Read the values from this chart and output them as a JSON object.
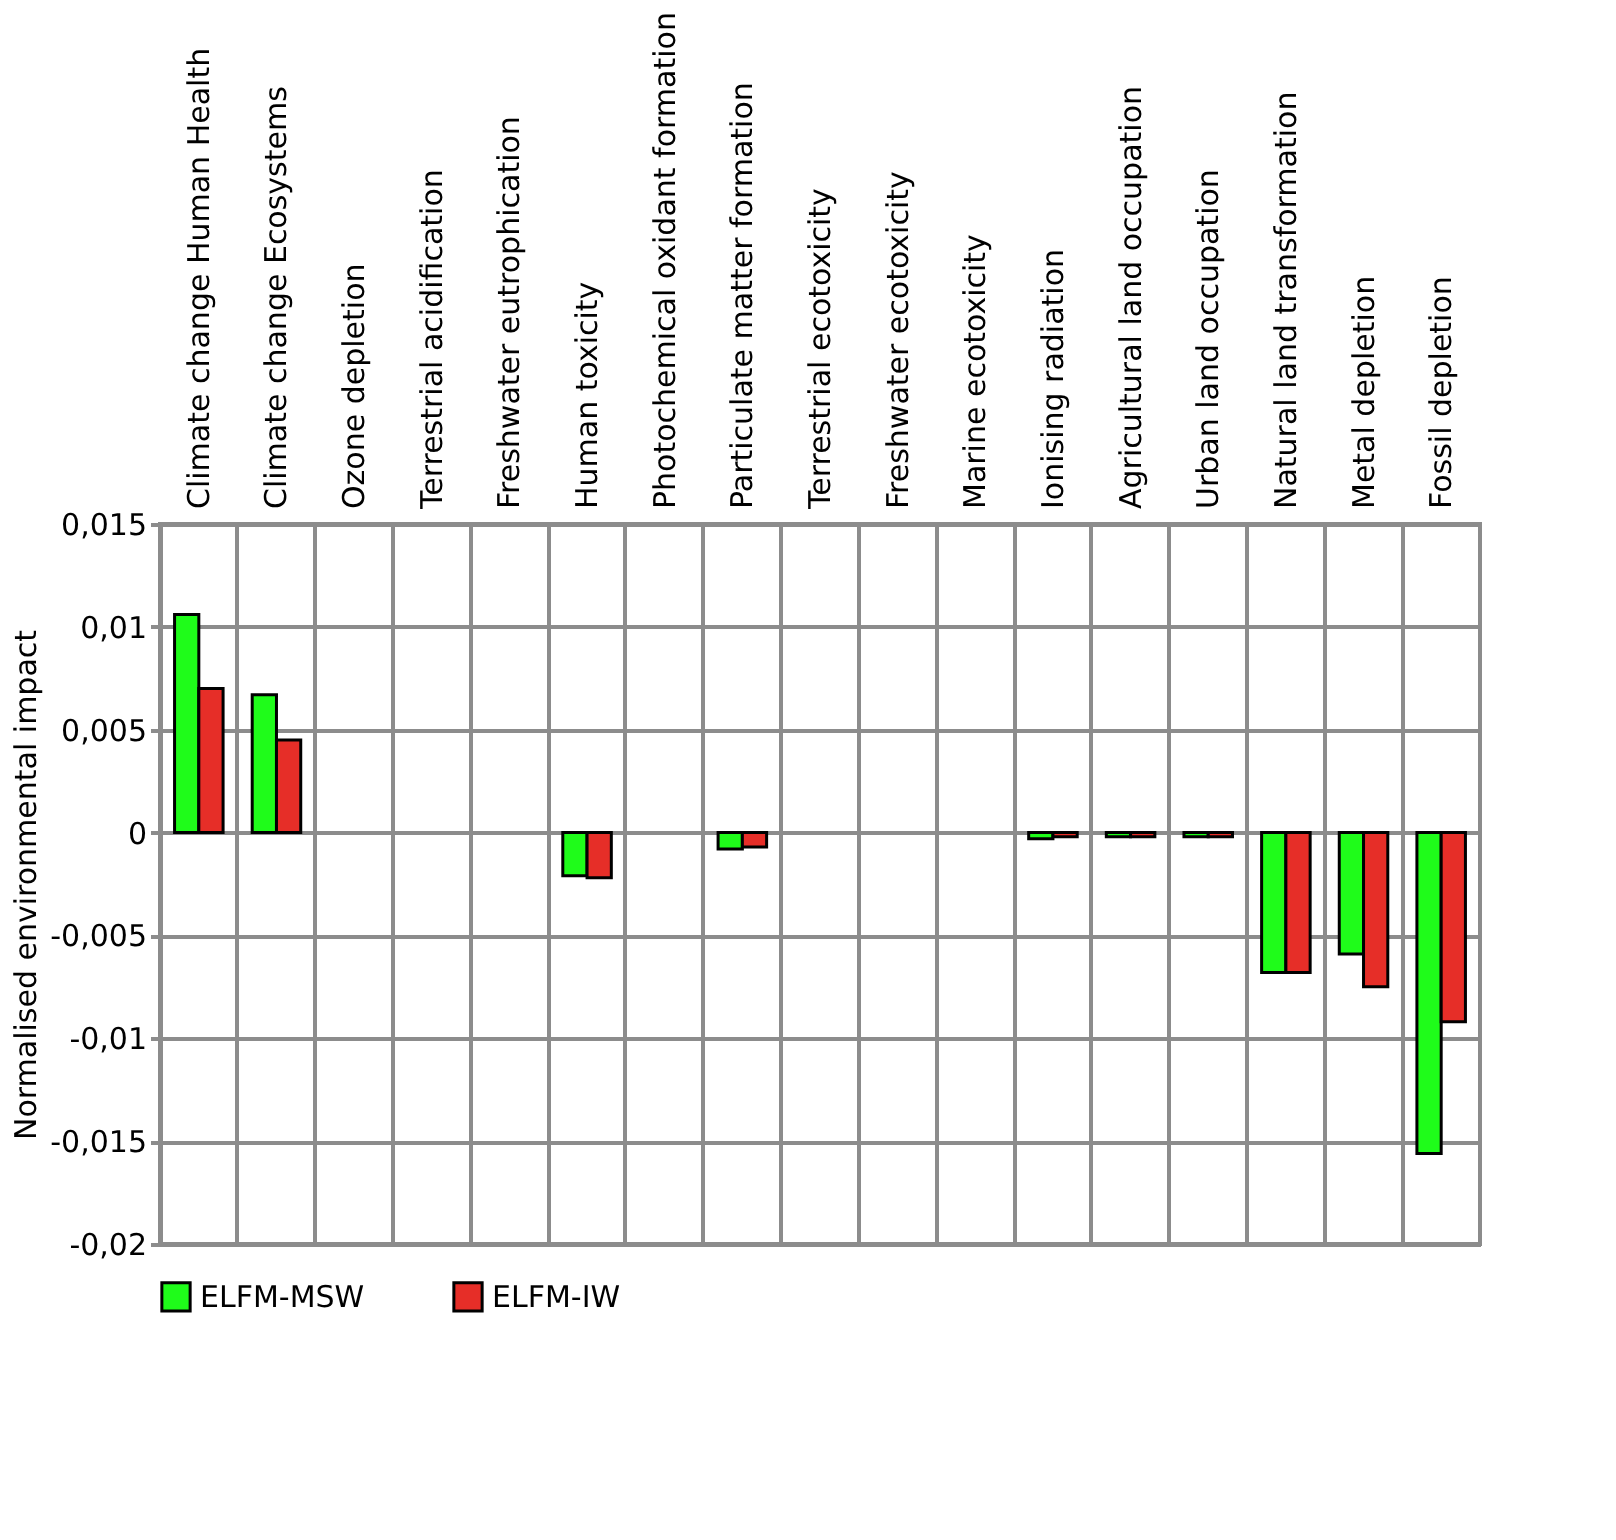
{
  "chart_data": {
    "type": "bar",
    "ylabel": "Normalised environmental impact",
    "categories": [
      "Climate change Human Health",
      "Climate change Ecosystems",
      "Ozone depletion",
      "Terrestrial acidification",
      "Freshwater eutrophication",
      "Human toxicity",
      "Photochemical oxidant formation",
      "Particulate matter formation",
      "Terrestrial ecotoxicity",
      "Freshwater ecotoxicity",
      "Marine ecotoxicity",
      "Ionising radiation",
      "Agricultural land occupation",
      "Urban land occupation",
      "Natural land transformation",
      "Metal depletion",
      "Fossil depletion"
    ],
    "series": [
      {
        "name": "ELFM-MSW",
        "color": "#1ffc1a",
        "values": [
          0.0106,
          0.0067,
          null,
          null,
          null,
          -0.0021,
          null,
          -0.0008,
          null,
          null,
          null,
          -0.0003,
          -0.0002,
          -0.0002,
          -0.0068,
          -0.0059,
          -0.0156
        ]
      },
      {
        "name": "ELFM-IW",
        "color": "#e62e28",
        "values": [
          0.007,
          0.0045,
          null,
          null,
          null,
          -0.0022,
          null,
          -0.0007,
          null,
          null,
          null,
          -0.0002,
          -0.0002,
          -0.0002,
          -0.0068,
          -0.0075,
          -0.0092
        ]
      }
    ],
    "ylim": [
      -0.02,
      0.015
    ],
    "yticks": [
      {
        "value": 0.015,
        "label": "0,015"
      },
      {
        "value": 0.01,
        "label": "0,01"
      },
      {
        "value": 0.005,
        "label": "0,005"
      },
      0,
      {
        "value": -0.005,
        "label": "-0,005"
      },
      {
        "value": -0.01,
        "label": "-0,01"
      },
      {
        "value": -0.015,
        "label": "-0,015"
      },
      {
        "value": -0.02,
        "label": "-0,02"
      }
    ],
    "grid": true,
    "legend": "bottom"
  }
}
